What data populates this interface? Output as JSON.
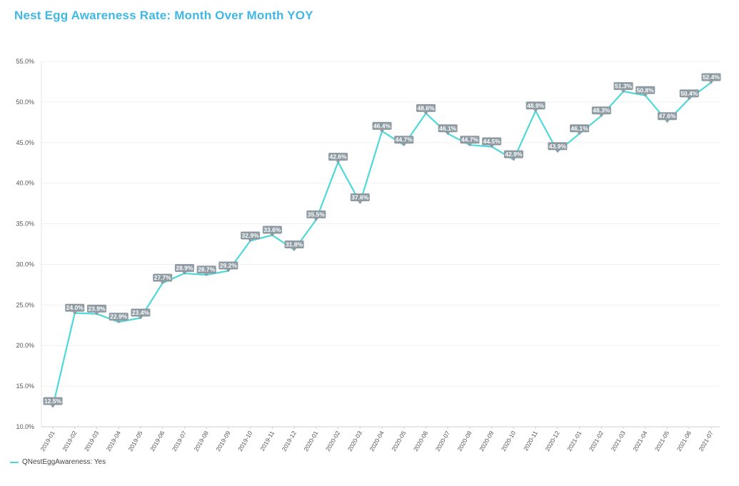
{
  "chart_data": {
    "type": "line",
    "title": "Nest Egg Awareness Rate: Month Over Month YOY",
    "xlabel": "",
    "ylabel": "",
    "ylim": [
      10,
      55
    ],
    "yticks": [
      "10.0%",
      "15.0%",
      "20.0%",
      "25.0%",
      "30.0%",
      "35.0%",
      "40.0%",
      "45.0%",
      "50.0%",
      "55.0%"
    ],
    "grid": true,
    "legend_position": "bottom-left",
    "categories": [
      "2019-01",
      "2019-02",
      "2019-03",
      "2019-04",
      "2019-05",
      "2019-06",
      "2019-07",
      "2019-08",
      "2019-09",
      "2019-10",
      "2019-11",
      "2019-12",
      "2020-01",
      "2020-02",
      "2020-03",
      "2020-04",
      "2020-05",
      "2020-06",
      "2020-07",
      "2020-08",
      "2020-09",
      "2020-10",
      "2020-11",
      "2020-12",
      "2021-01",
      "2021-02",
      "2021-03",
      "2021-04",
      "2021-05",
      "2021-06",
      "2021-07"
    ],
    "series": [
      {
        "name": "QNestEggAwareness: Yes",
        "color": "#4fd8d8",
        "values": [
          12.5,
          24.0,
          23.9,
          22.9,
          23.4,
          27.7,
          28.9,
          28.7,
          29.2,
          32.9,
          33.6,
          31.8,
          35.5,
          42.6,
          37.6,
          46.4,
          44.7,
          48.6,
          46.1,
          44.7,
          44.5,
          42.9,
          48.9,
          43.9,
          46.1,
          48.3,
          51.3,
          50.8,
          47.6,
          50.4,
          52.4
        ],
        "labels": [
          "12.5%",
          "24.0%",
          "23.9%",
          "22.9%",
          "23.4%",
          "27.7%",
          "28.9%",
          "28.7%",
          "29.2%",
          "32.9%",
          "33.6%",
          "31.8%",
          "35.5%",
          "42.6%",
          "37.6%",
          "46.4%",
          "44.7%",
          "48.6%",
          "46.1%",
          "44.7%",
          "44.5%",
          "42.9%",
          "48.9%",
          "43.9%",
          "46.1%",
          "48.3%",
          "51.3%",
          "50.8%",
          "47.6%",
          "50.4%",
          "52.4%"
        ]
      }
    ]
  },
  "colors": {
    "title": "#3fb8e6",
    "line": "#4fd8d8",
    "label_bg": "#8e9aa2",
    "grid": "#f0f0f0"
  }
}
